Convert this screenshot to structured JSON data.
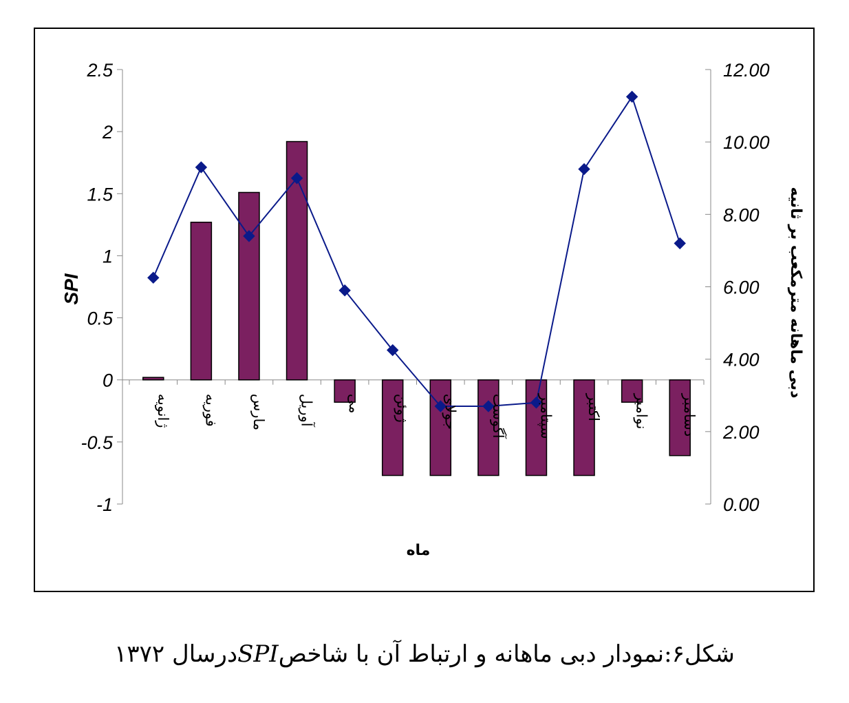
{
  "chart_data": {
    "type": "bar+line",
    "categories": [
      "ژانویه",
      "فوریه",
      "مارس",
      "آوریل",
      "می",
      "ژوئن",
      "جولای",
      "آگوست",
      "سپتامبر",
      "اکتبر",
      "نوامبر",
      "دسامبر"
    ],
    "series": [
      {
        "name": "SPI",
        "type": "bar",
        "axis": "left",
        "values": [
          0.02,
          1.27,
          1.51,
          1.92,
          -0.18,
          -0.77,
          -0.77,
          -0.77,
          -0.77,
          -0.77,
          -0.18,
          -0.61
        ]
      },
      {
        "name": "دبی ماهانه مترمکعب بر ثانیه",
        "type": "line",
        "axis": "right",
        "values": [
          6.25,
          9.3,
          7.4,
          9.0,
          5.9,
          4.25,
          2.7,
          2.7,
          2.8,
          9.25,
          11.25,
          7.2
        ]
      }
    ],
    "left_axis": {
      "label": "SPI",
      "ticks": [
        "2.5",
        "2",
        "1.5",
        "1",
        "0.5",
        "0",
        "-0.5",
        "-1"
      ],
      "ylim": [
        -1,
        2.5
      ]
    },
    "right_axis": {
      "label": "دبی ماهانه مترمکعب بر ثانیه",
      "ticks": [
        "12.00",
        "10.00",
        "8.00",
        "6.00",
        "4.00",
        "2.00",
        "0.00"
      ],
      "ylim": [
        0,
        12
      ]
    },
    "xlabel": "ماه",
    "colors": {
      "bar": "#7b2060",
      "line": "#0a1a8a",
      "marker": "#0a1a8a"
    },
    "grid": false
  },
  "caption": {
    "prefix": "شکل۶:نمودار دبی ماهانه و ارتباط آن با شاخص",
    "index_name": "SPI",
    "suffix": "درسال ۱۳۷۲"
  }
}
